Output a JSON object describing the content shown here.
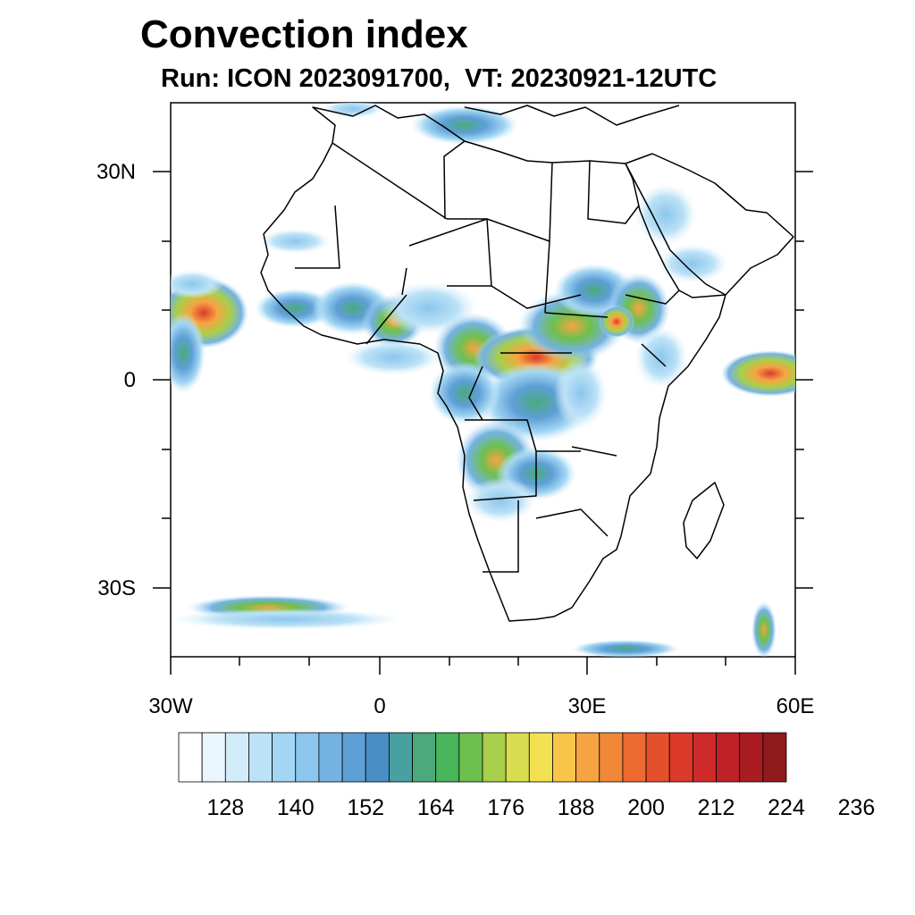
{
  "title": "Convection index",
  "subtitle": "Run: ICON 2023091700,  VT: 20230921-12UTC",
  "map": {
    "region": "Africa",
    "lon_range": [
      -30,
      60
    ],
    "lat_range": [
      -40,
      40
    ],
    "x_ticks": [
      "30W",
      "0",
      "30E",
      "60E"
    ],
    "y_ticks": [
      "30N",
      "0",
      "30S"
    ]
  },
  "colorbar": {
    "labels": [
      "128",
      "140",
      "152",
      "164",
      "176",
      "188",
      "200",
      "212",
      "224",
      "236"
    ],
    "colors": [
      "#ffffff",
      "#eaf6fd",
      "#d3ecfa",
      "#bce2f7",
      "#a3d6f4",
      "#8cc6ec",
      "#74b2e2",
      "#5e9fd6",
      "#4a8ec6",
      "#49a0a0",
      "#4aaa7c",
      "#48b55a",
      "#6ec04e",
      "#a8cf4b",
      "#d8dd4f",
      "#f2e150",
      "#f8c44a",
      "#f6a441",
      "#f18838",
      "#ec6a30",
      "#e4502b",
      "#db3a2a",
      "#cf2a2a",
      "#be2227",
      "#aa1c22",
      "#8e1a1c"
    ]
  }
}
